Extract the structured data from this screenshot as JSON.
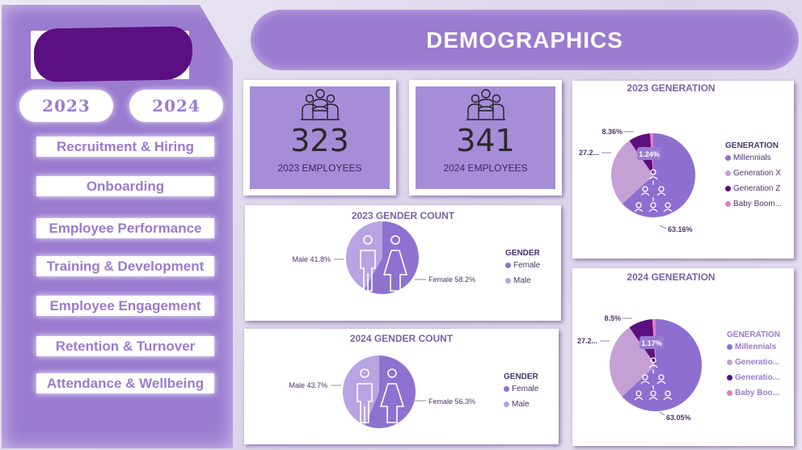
{
  "header": {
    "title": "DEMOGRAPHICS"
  },
  "sidebar": {
    "years": [
      "2023",
      "2024"
    ],
    "nav": [
      "Recruitment & Hiring",
      "Onboarding",
      "Employee Performance",
      "Training & Development",
      "Employee Engagement",
      "Retention & Turnover",
      "Attendance & Wellbeing"
    ]
  },
  "kpi": {
    "y2023": {
      "value": "323",
      "label": "2023 EMPLOYEES"
    },
    "y2024": {
      "value": "341",
      "label": "2024 EMPLOYEES"
    }
  },
  "colors": {
    "accent": "#9a7bd0",
    "millennials": "#8e6fd0",
    "genx": "#c5a0d4",
    "genz": "#5c0f7f",
    "boomers": "#e37ec4",
    "female": "#8e72cf",
    "male": "#b7a4e2"
  },
  "gender2023": {
    "title": "2023 GENDER COUNT",
    "male_label": "Male 41.8%",
    "female_label": "Female 58.2%",
    "legend_title": "GENDER",
    "legend": [
      "Female",
      "Male"
    ]
  },
  "gender2024": {
    "title": "2024 GENDER COUNT",
    "male_label": "Male 43.7%",
    "female_label": "Female 56.3%",
    "legend_title": "GENDER",
    "legend": [
      "Female",
      "Male"
    ]
  },
  "gen2023": {
    "title": "2023 GENERATION",
    "labels": {
      "genz": "8.36%",
      "genx": "27.2...",
      "boomers": "1.24%",
      "millennials": "63.16%"
    },
    "legend_title": "GENERATION",
    "legend": [
      "Millennials",
      "Generation X",
      "Generation Z",
      "Baby Boom..."
    ]
  },
  "gen2024": {
    "title": "2024 GENERATION",
    "labels": {
      "genz": "8.5%",
      "genx": "27.2...",
      "boomers": "1.17%",
      "millennials": "63.05%"
    },
    "legend_title": "GENERATION",
    "legend": [
      "Millennials",
      "Generatio...",
      "Generatio...",
      "Baby Boo..."
    ]
  },
  "chart_data": [
    {
      "type": "pie",
      "title": "2023 GENDER COUNT",
      "categories": [
        "Female",
        "Male"
      ],
      "values": [
        58.2,
        41.8
      ]
    },
    {
      "type": "pie",
      "title": "2024 GENDER COUNT",
      "categories": [
        "Female",
        "Male"
      ],
      "values": [
        56.3,
        43.7
      ]
    },
    {
      "type": "pie",
      "title": "2023 GENERATION",
      "categories": [
        "Millennials",
        "Generation X",
        "Generation Z",
        "Baby Boomers"
      ],
      "values": [
        63.16,
        27.24,
        8.36,
        1.24
      ]
    },
    {
      "type": "pie",
      "title": "2024 GENERATION",
      "categories": [
        "Millennials",
        "Generation X",
        "Generation Z",
        "Baby Boomers"
      ],
      "values": [
        63.05,
        27.28,
        8.5,
        1.17
      ]
    }
  ]
}
